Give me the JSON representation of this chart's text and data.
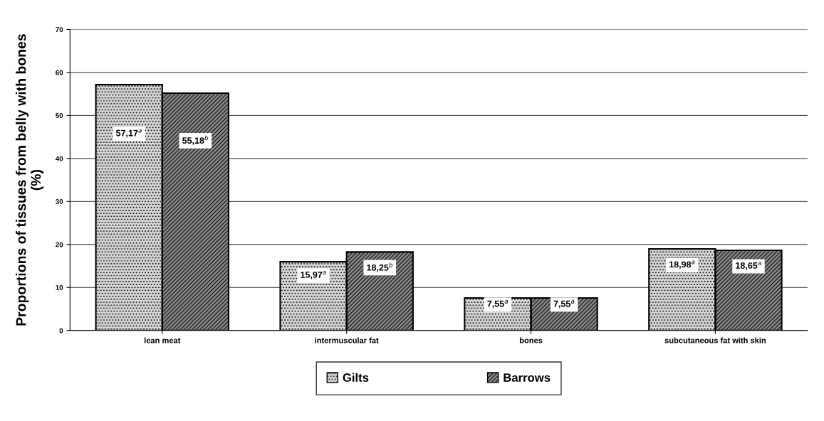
{
  "chart_data": {
    "type": "bar",
    "ylabel": "Proportions of tissues from belly with bones\n(%)",
    "categories": [
      "lean meat",
      "intermuscular fat",
      "bones",
      "subcutaneous fat with skin"
    ],
    "series": [
      {
        "name": "Gilts",
        "color": "#d9d9d9",
        "values": [
          57.17,
          15.97,
          7.55,
          18.98
        ],
        "value_labels": [
          "57,17$^{a}$",
          "15,97$^{a}$",
          "7,55$^{a}$",
          "18,98$^{a}$"
        ]
      },
      {
        "name": "Barrows",
        "color": "#8c8c8c",
        "values": [
          55.18,
          18.25,
          7.55,
          18.65
        ],
        "value_labels": [
          "55,18$^{b}$",
          "18,25$^{b}$",
          "7,55$^{a}$",
          "18,65$^{a}$"
        ]
      }
    ],
    "ylim": [
      0,
      70
    ],
    "yticks": [
      0,
      10,
      20,
      30,
      40,
      50,
      60,
      70
    ],
    "grid": "y",
    "legend": "bottom"
  }
}
